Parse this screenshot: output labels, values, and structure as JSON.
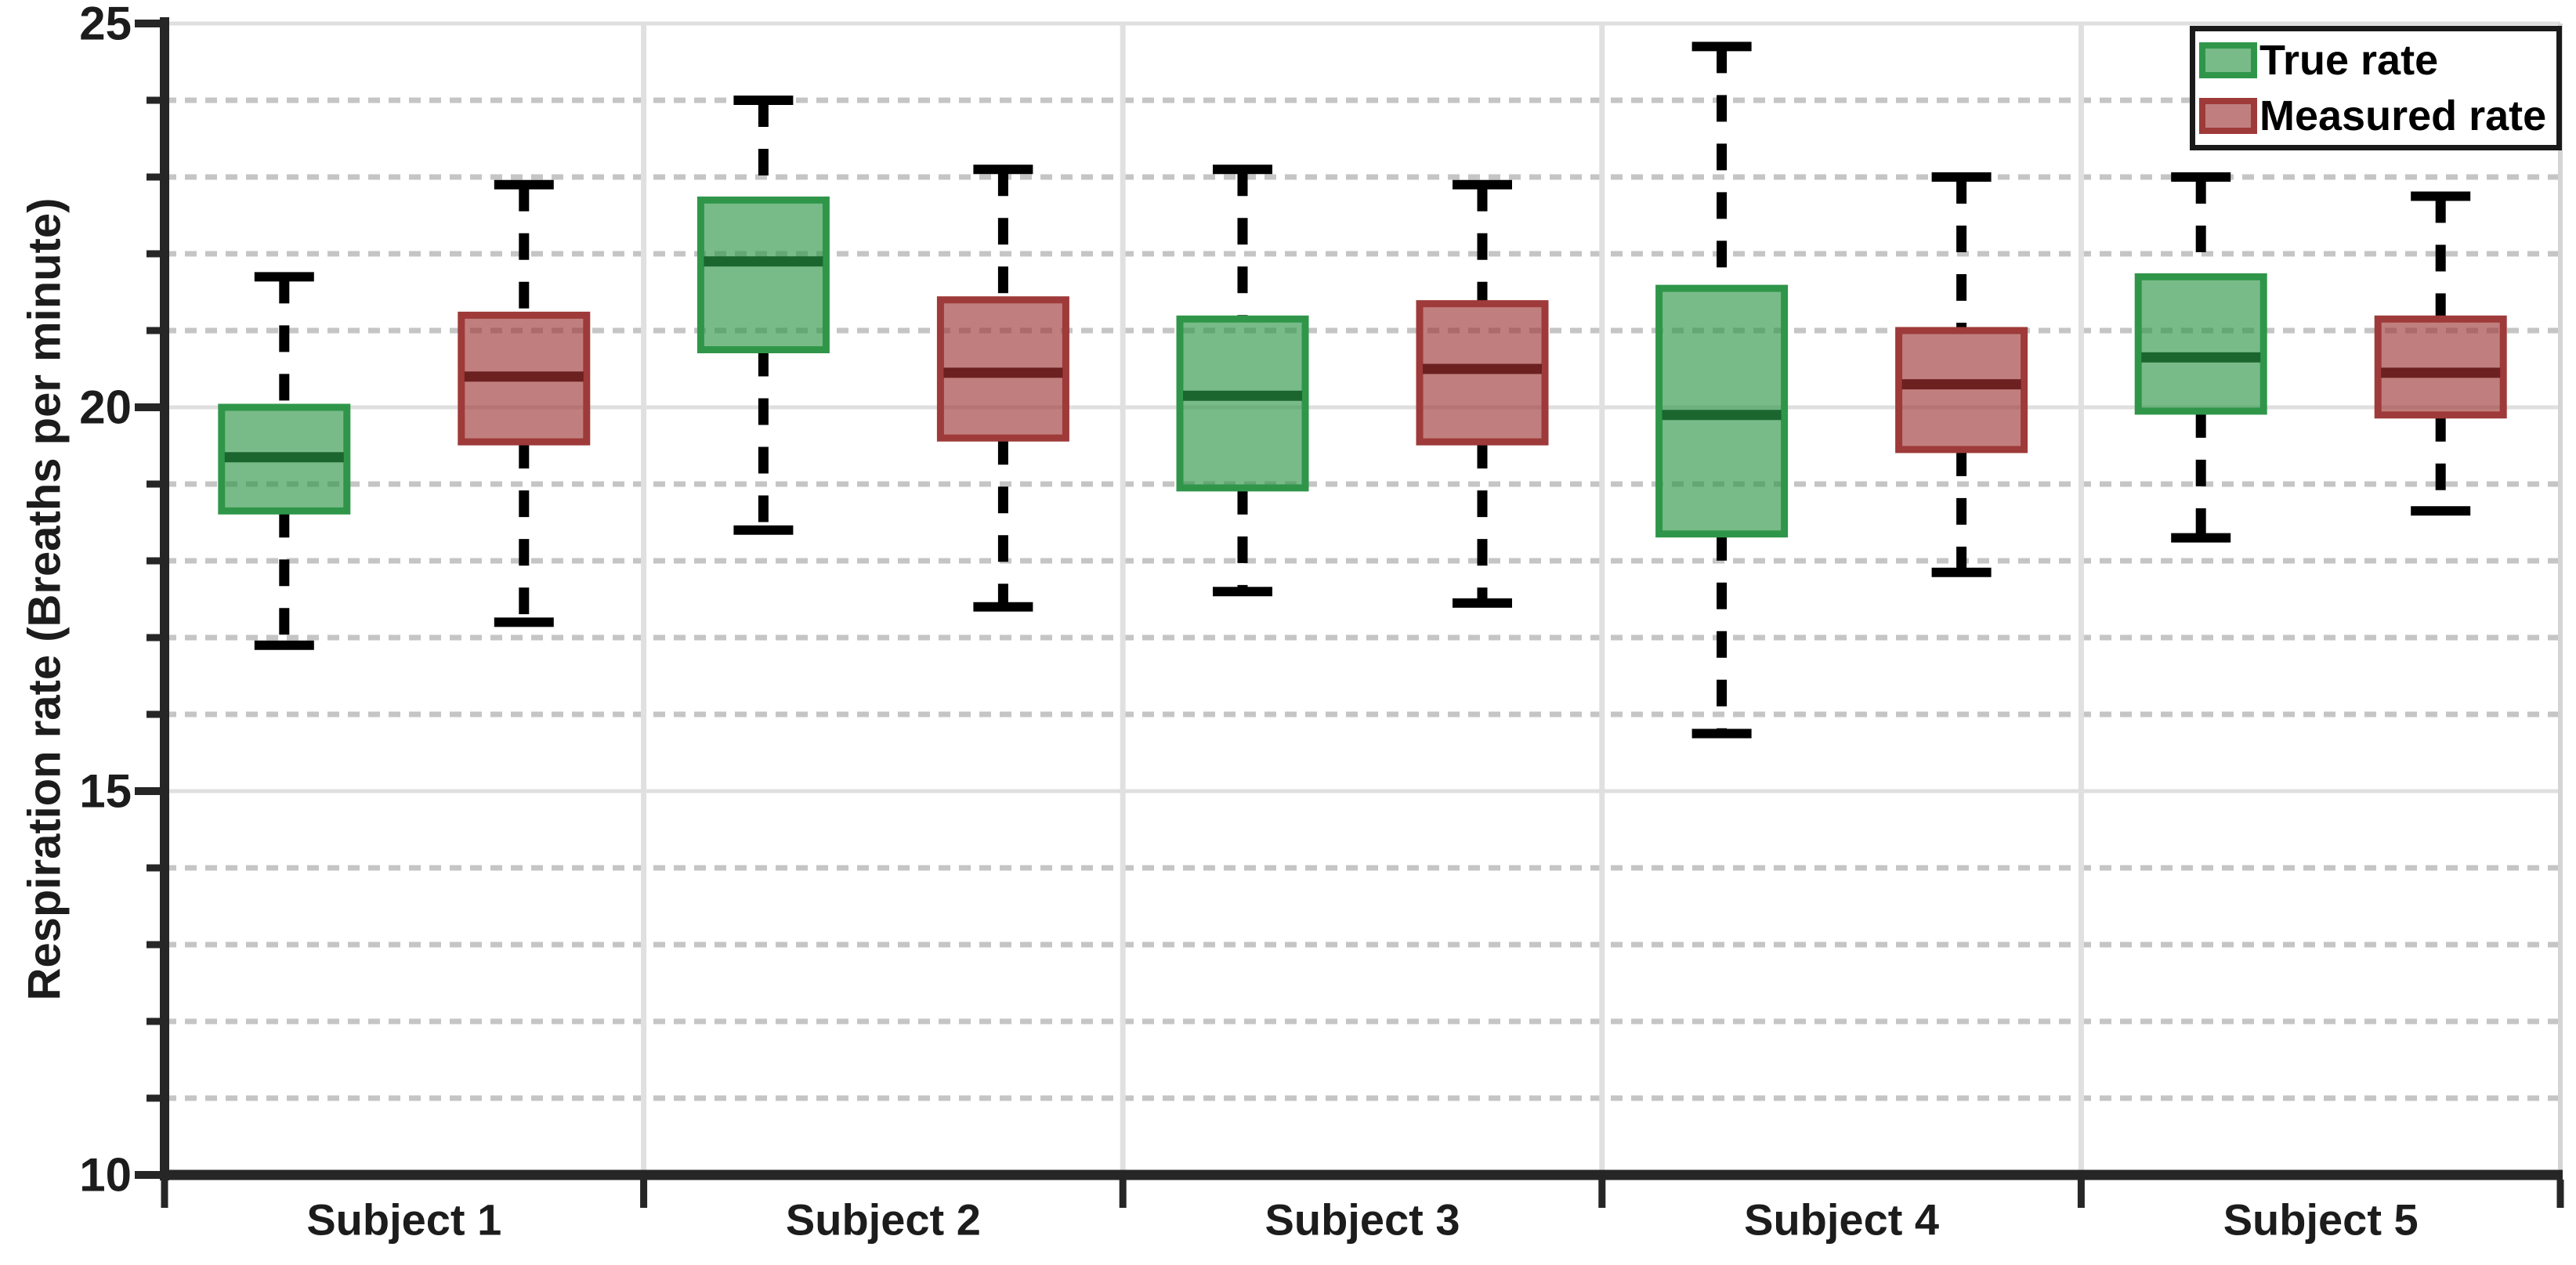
{
  "figure": {
    "ylabel": "Respiration rate (Breaths per minute)",
    "background": "#ffffff",
    "axis_color": "#262626",
    "grid_major_color": "#dfdfdf",
    "grid_minor_color": "#c5c5c5",
    "whisker_color": "#000000"
  },
  "legend": {
    "items": [
      {
        "label": "True rate",
        "stroke": "#2f9649",
        "fill": "rgba(47,150,73,0.65)"
      },
      {
        "label": "Measured rate",
        "stroke": "#9e3a39",
        "fill": "rgba(158,58,57,0.65)"
      }
    ]
  },
  "chart_data": {
    "type": "boxplot",
    "title": "",
    "xlabel": "",
    "ylabel": "Respiration rate (Breaths per minute)",
    "categories": [
      "Subject 1",
      "Subject 2",
      "Subject 3",
      "Subject 4",
      "Subject 5"
    ],
    "ylim": [
      10,
      25
    ],
    "yticks_major": [
      25,
      20,
      15,
      10
    ],
    "ytick_minor_step": 1,
    "grid": {
      "horizontal_major": "solid",
      "horizontal_minor": "dashed",
      "vertical_group_separators": true
    },
    "legend_position": "top-right",
    "series": [
      {
        "name": "True rate",
        "stroke": "#2f9649",
        "fill": "rgba(47,150,73,0.65)",
        "median_color": "#1a662e",
        "boxes": [
          {
            "whislo": 16.9,
            "q1": 18.65,
            "med": 19.35,
            "q3": 20.0,
            "whishi": 21.7
          },
          {
            "whislo": 18.4,
            "q1": 20.75,
            "med": 21.9,
            "q3": 22.7,
            "whishi": 24.0
          },
          {
            "whislo": 17.6,
            "q1": 18.95,
            "med": 20.15,
            "q3": 21.15,
            "whishi": 23.1
          },
          {
            "whislo": 15.75,
            "q1": 18.35,
            "med": 19.9,
            "q3": 21.55,
            "whishi": 24.7
          },
          {
            "whislo": 18.3,
            "q1": 19.95,
            "med": 20.65,
            "q3": 21.7,
            "whishi": 23.0
          }
        ]
      },
      {
        "name": "Measured rate",
        "stroke": "#9e3a39",
        "fill": "rgba(158,58,57,0.65)",
        "median_color": "#6d2020",
        "boxes": [
          {
            "whislo": 17.2,
            "q1": 19.55,
            "med": 20.4,
            "q3": 21.2,
            "whishi": 22.9
          },
          {
            "whislo": 17.4,
            "q1": 19.6,
            "med": 20.45,
            "q3": 21.4,
            "whishi": 23.1
          },
          {
            "whislo": 17.45,
            "q1": 19.55,
            "med": 20.5,
            "q3": 21.35,
            "whishi": 22.9
          },
          {
            "whislo": 17.85,
            "q1": 19.45,
            "med": 20.3,
            "q3": 21.0,
            "whishi": 23.0
          },
          {
            "whislo": 18.65,
            "q1": 19.9,
            "med": 20.45,
            "q3": 21.15,
            "whishi": 22.75
          }
        ]
      }
    ]
  }
}
